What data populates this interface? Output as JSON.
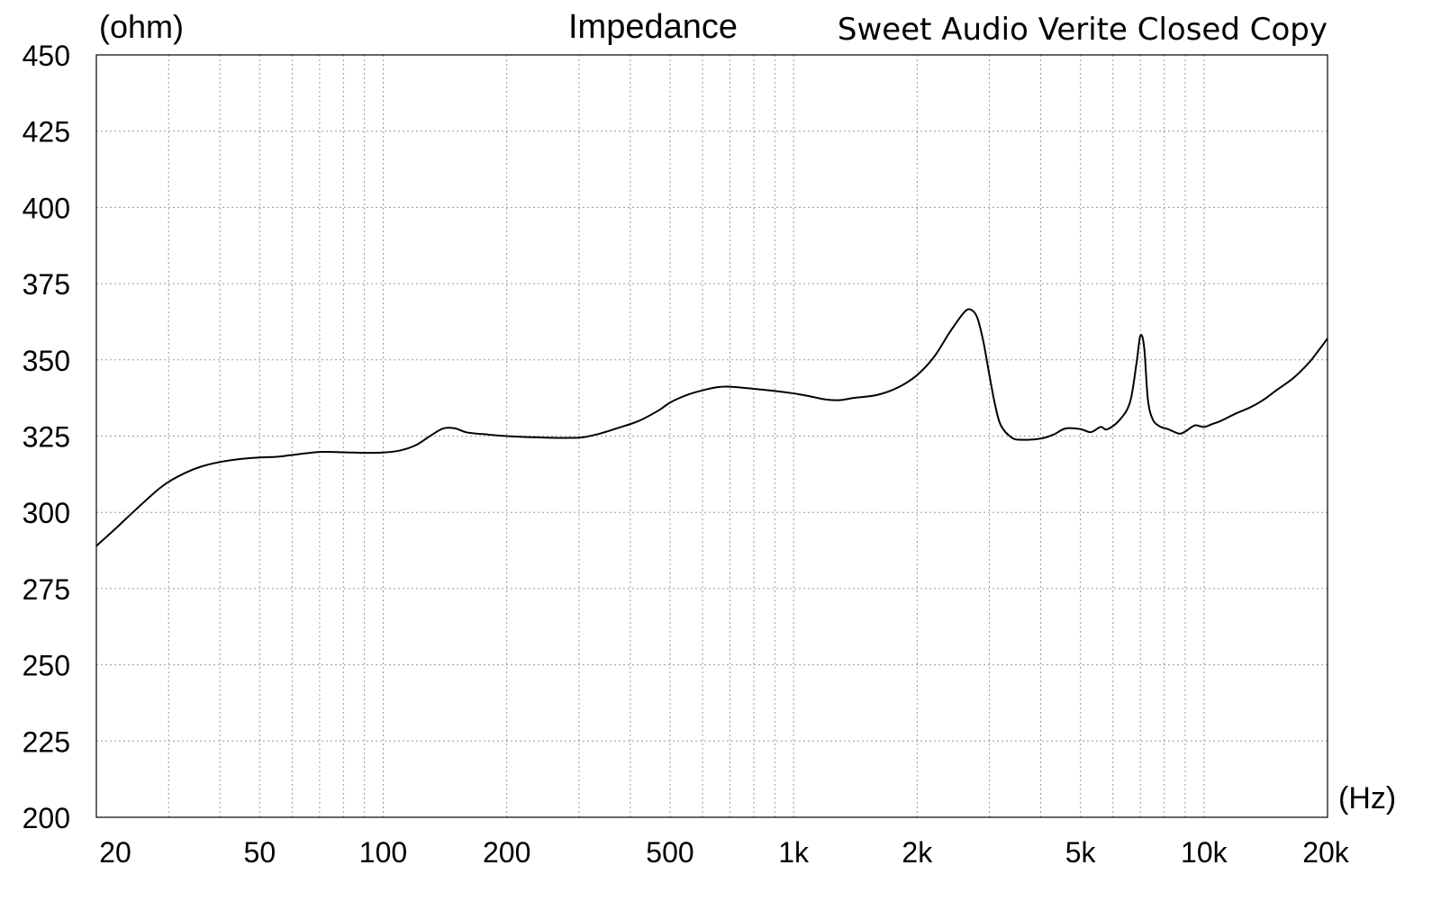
{
  "chart_data": {
    "type": "line",
    "title": "Impedance",
    "subtitle": "Sweet Audio Verite Closed Copy",
    "ylabel": "(ohm)",
    "xlabel": "(Hz)",
    "xscale": "log",
    "xlim": [
      20,
      20000
    ],
    "ylim": [
      200,
      450
    ],
    "grid": true,
    "grid_style": "dotted",
    "x_ticks": [
      {
        "value": 20,
        "label": "20"
      },
      {
        "value": 50,
        "label": "50"
      },
      {
        "value": 100,
        "label": "100"
      },
      {
        "value": 200,
        "label": "200"
      },
      {
        "value": 500,
        "label": "500"
      },
      {
        "value": 1000,
        "label": "1k"
      },
      {
        "value": 2000,
        "label": "2k"
      },
      {
        "value": 5000,
        "label": "5k"
      },
      {
        "value": 10000,
        "label": "10k"
      },
      {
        "value": 20000,
        "label": "20k"
      }
    ],
    "y_ticks": [
      200,
      225,
      250,
      275,
      300,
      325,
      350,
      375,
      400,
      425,
      450
    ],
    "series": [
      {
        "color": "#000000",
        "points": [
          [
            20,
            289
          ],
          [
            22,
            294
          ],
          [
            25,
            301
          ],
          [
            28,
            307
          ],
          [
            30,
            310
          ],
          [
            33,
            313
          ],
          [
            36,
            315
          ],
          [
            40,
            316.5
          ],
          [
            45,
            317.5
          ],
          [
            50,
            318
          ],
          [
            55,
            318.2
          ],
          [
            60,
            318.8
          ],
          [
            70,
            319.8
          ],
          [
            80,
            319.7
          ],
          [
            90,
            319.5
          ],
          [
            100,
            319.6
          ],
          [
            110,
            320.3
          ],
          [
            120,
            322
          ],
          [
            130,
            325
          ],
          [
            140,
            327.5
          ],
          [
            150,
            327.5
          ],
          [
            160,
            326.2
          ],
          [
            180,
            325.5
          ],
          [
            200,
            325
          ],
          [
            250,
            324.5
          ],
          [
            300,
            324.5
          ],
          [
            330,
            325.5
          ],
          [
            370,
            327.5
          ],
          [
            420,
            330
          ],
          [
            470,
            333.5
          ],
          [
            500,
            336
          ],
          [
            550,
            338.5
          ],
          [
            600,
            340
          ],
          [
            650,
            341
          ],
          [
            700,
            341.2
          ],
          [
            800,
            340.5
          ],
          [
            900,
            339.8
          ],
          [
            1000,
            339
          ],
          [
            1100,
            338
          ],
          [
            1200,
            337
          ],
          [
            1300,
            336.8
          ],
          [
            1400,
            337.5
          ],
          [
            1600,
            338.5
          ],
          [
            1800,
            341
          ],
          [
            2000,
            345
          ],
          [
            2200,
            351
          ],
          [
            2400,
            359
          ],
          [
            2600,
            365.5
          ],
          [
            2700,
            366.5
          ],
          [
            2800,
            364
          ],
          [
            2900,
            356
          ],
          [
            3000,
            345
          ],
          [
            3100,
            335
          ],
          [
            3200,
            328.5
          ],
          [
            3400,
            324.5
          ],
          [
            3600,
            323.8
          ],
          [
            4000,
            324.2
          ],
          [
            4300,
            325.5
          ],
          [
            4600,
            327.5
          ],
          [
            5000,
            327.3
          ],
          [
            5300,
            326.3
          ],
          [
            5600,
            328
          ],
          [
            5800,
            327.2
          ],
          [
            6200,
            330
          ],
          [
            6600,
            336
          ],
          [
            6850,
            349
          ],
          [
            7000,
            358
          ],
          [
            7150,
            354
          ],
          [
            7300,
            337
          ],
          [
            7500,
            330.5
          ],
          [
            7800,
            328.2
          ],
          [
            8200,
            327.2
          ],
          [
            8700,
            325.8
          ],
          [
            9000,
            326.5
          ],
          [
            9500,
            328.5
          ],
          [
            10000,
            328
          ],
          [
            10500,
            329
          ],
          [
            11000,
            330
          ],
          [
            12000,
            332.5
          ],
          [
            13000,
            334.5
          ],
          [
            14000,
            337
          ],
          [
            15000,
            340
          ],
          [
            16500,
            344
          ],
          [
            18000,
            349
          ],
          [
            19000,
            353
          ],
          [
            20000,
            357
          ]
        ]
      }
    ]
  }
}
